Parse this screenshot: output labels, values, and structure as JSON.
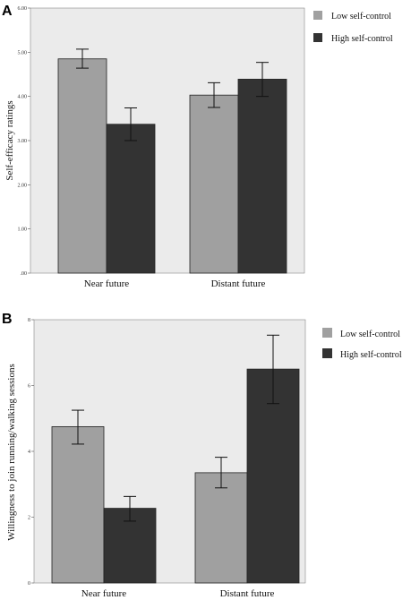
{
  "chart_data": [
    {
      "panel": "A",
      "type": "bar",
      "ylabel": "Self-efficacy ratings",
      "categories": [
        "Near future",
        "Distant future"
      ],
      "ylim": [
        0,
        6
      ],
      "yticks": [
        0,
        1,
        2,
        3,
        4,
        5,
        6
      ],
      "ytick_labels": [
        ".00",
        "1.00",
        "2.00",
        "3.00",
        "4.00",
        "5.00",
        "6.00"
      ],
      "series": [
        {
          "name": "Low self-control",
          "color": "#a0a0a0",
          "values": [
            4.85,
            4.03
          ],
          "err_low": [
            4.64,
            3.75
          ],
          "err_high": [
            5.07,
            4.31
          ]
        },
        {
          "name": "High self-control",
          "color": "#333333",
          "values": [
            3.37,
            4.39
          ],
          "err_low": [
            3.0,
            4.0
          ],
          "err_high": [
            3.74,
            4.77
          ]
        }
      ],
      "legend": "top-right",
      "grid": false
    },
    {
      "panel": "B",
      "type": "bar",
      "ylabel": "Willingness to join running/walking sessions",
      "categories": [
        "Near future",
        "Distant future"
      ],
      "ylim": [
        0,
        8
      ],
      "yticks": [
        0,
        2,
        4,
        6,
        8
      ],
      "ytick_labels": [
        "0",
        "2",
        "4",
        "6",
        "8"
      ],
      "series": [
        {
          "name": "Low self-control",
          "color": "#a0a0a0",
          "values": [
            4.75,
            3.35
          ],
          "err_low": [
            4.22,
            2.89
          ],
          "err_high": [
            5.25,
            3.82
          ]
        },
        {
          "name": "High self-control",
          "color": "#333333",
          "values": [
            2.27,
            6.5
          ],
          "err_low": [
            1.88,
            5.45
          ],
          "err_high": [
            2.63,
            7.53
          ]
        }
      ],
      "legend": "top-right",
      "grid": false
    }
  ]
}
